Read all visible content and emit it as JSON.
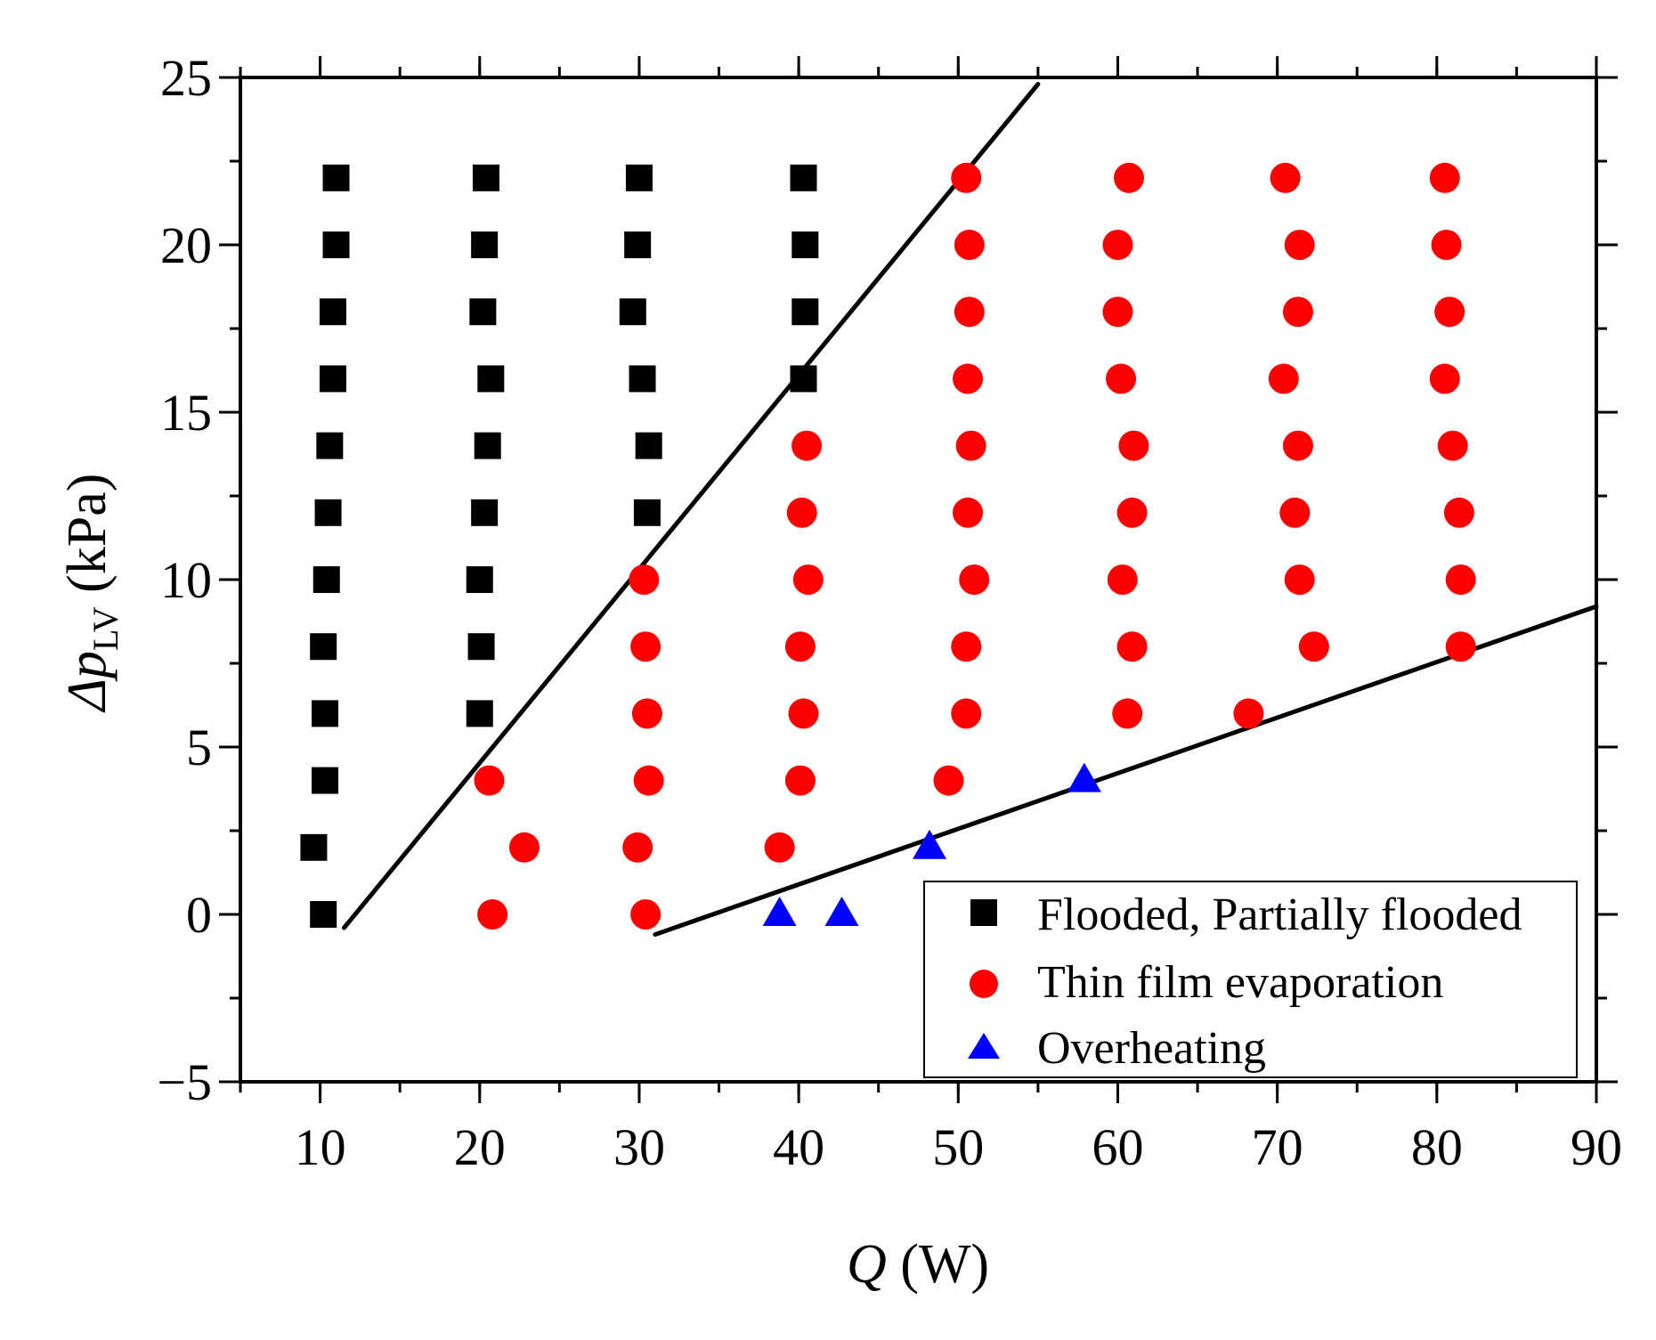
{
  "chart_data": {
    "type": "scatter",
    "title": "",
    "xlabel": {
      "var": "Q",
      "unit": "(W)"
    },
    "ylabel": {
      "var": "Δp",
      "sub": "LV",
      "unit": "(kPa)"
    },
    "xlim": [
      5,
      90
    ],
    "ylim": [
      -5,
      25
    ],
    "x_ticks": [
      10,
      20,
      30,
      40,
      50,
      60,
      70,
      80,
      90
    ],
    "y_ticks": [
      -5,
      0,
      5,
      10,
      15,
      20,
      25
    ],
    "x_tick_labels": [
      "10",
      "20",
      "30",
      "40",
      "50",
      "60",
      "70",
      "80",
      "90"
    ],
    "y_tick_labels": [
      "−5",
      "0",
      "5",
      "10",
      "15",
      "20",
      "25"
    ],
    "x_minor_step": 5,
    "y_minor_step": 2.5,
    "grid": false,
    "legend_position": "bottom-right",
    "series": [
      {
        "name": "Flooded, Partially flooded",
        "marker": "square",
        "color": "#000000",
        "points": [
          [
            11.0,
            22
          ],
          [
            11.0,
            20
          ],
          [
            10.8,
            18
          ],
          [
            10.8,
            16
          ],
          [
            10.6,
            14
          ],
          [
            10.5,
            12
          ],
          [
            10.4,
            10
          ],
          [
            10.2,
            8
          ],
          [
            10.3,
            6
          ],
          [
            10.3,
            4
          ],
          [
            9.6,
            2
          ],
          [
            10.2,
            0
          ],
          [
            20.4,
            22
          ],
          [
            20.3,
            20
          ],
          [
            20.2,
            18
          ],
          [
            20.7,
            16
          ],
          [
            20.5,
            14
          ],
          [
            20.3,
            12
          ],
          [
            20.0,
            10
          ],
          [
            20.1,
            8
          ],
          [
            20.0,
            6
          ],
          [
            30.0,
            22
          ],
          [
            29.9,
            20
          ],
          [
            29.6,
            18
          ],
          [
            30.2,
            16
          ],
          [
            30.6,
            14
          ],
          [
            30.5,
            12
          ],
          [
            40.3,
            22
          ],
          [
            40.4,
            20
          ],
          [
            40.4,
            18
          ],
          [
            40.3,
            16
          ]
        ]
      },
      {
        "name": "Thin film evaporation",
        "marker": "circle",
        "color": "#ff0000",
        "points": [
          [
            20.6,
            4
          ],
          [
            22.8,
            2
          ],
          [
            20.8,
            0
          ],
          [
            30.3,
            10
          ],
          [
            30.4,
            8
          ],
          [
            30.5,
            6
          ],
          [
            30.6,
            4
          ],
          [
            29.9,
            2
          ],
          [
            30.4,
            0
          ],
          [
            40.5,
            14
          ],
          [
            40.2,
            12
          ],
          [
            40.6,
            10
          ],
          [
            40.1,
            8
          ],
          [
            40.3,
            6
          ],
          [
            40.1,
            4
          ],
          [
            38.8,
            2
          ],
          [
            50.5,
            22
          ],
          [
            50.7,
            20
          ],
          [
            50.7,
            18
          ],
          [
            50.6,
            16
          ],
          [
            50.8,
            14
          ],
          [
            50.6,
            12
          ],
          [
            51.0,
            10
          ],
          [
            50.5,
            8
          ],
          [
            50.5,
            6
          ],
          [
            49.4,
            4
          ],
          [
            60.7,
            22
          ],
          [
            60.0,
            20
          ],
          [
            60.0,
            18
          ],
          [
            60.2,
            16
          ],
          [
            61.0,
            14
          ],
          [
            60.9,
            12
          ],
          [
            60.3,
            10
          ],
          [
            60.9,
            8
          ],
          [
            60.6,
            6
          ],
          [
            70.5,
            22
          ],
          [
            71.4,
            20
          ],
          [
            71.3,
            18
          ],
          [
            70.4,
            16
          ],
          [
            71.3,
            14
          ],
          [
            71.1,
            12
          ],
          [
            71.4,
            10
          ],
          [
            72.3,
            8
          ],
          [
            68.2,
            6
          ],
          [
            80.5,
            22
          ],
          [
            80.6,
            20
          ],
          [
            80.8,
            18
          ],
          [
            80.5,
            16
          ],
          [
            81.0,
            14
          ],
          [
            81.4,
            12
          ],
          [
            81.5,
            10
          ],
          [
            81.5,
            8
          ]
        ]
      },
      {
        "name": "Overheating",
        "marker": "triangle",
        "color": "#0000ff",
        "points": [
          [
            38.8,
            0
          ],
          [
            42.7,
            0
          ],
          [
            48.2,
            2
          ],
          [
            57.9,
            4
          ]
        ]
      }
    ],
    "boundary_lines": [
      {
        "name": "flooding-boundary",
        "from": [
          11.5,
          -0.4
        ],
        "to": [
          55.0,
          24.8
        ]
      },
      {
        "name": "overheating-boundary",
        "from": [
          31.0,
          -0.6
        ],
        "to": [
          90.0,
          9.2
        ]
      }
    ]
  }
}
